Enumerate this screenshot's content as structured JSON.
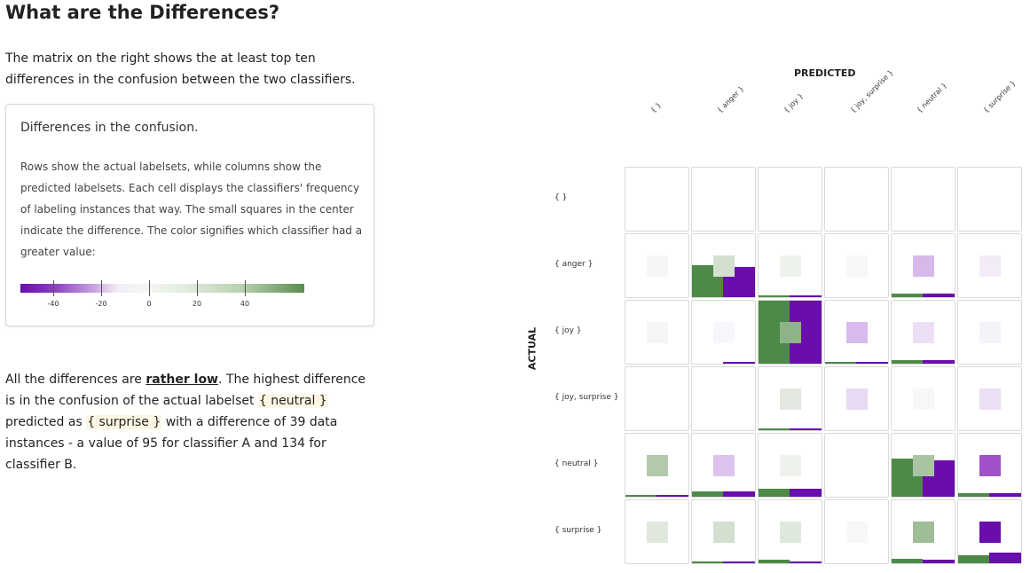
{
  "page": {
    "title": "What are the Differences?",
    "intro": "The matrix on the right shows the at least top ten differences in the confusion between the two classifiers."
  },
  "card": {
    "title": "Differences in the confusion.",
    "description": "Rows show the actual labelsets, while columns show the predicted labelsets. Each cell displays the classifiers' frequency of labeling instances that way. The small squares in the center indicate the difference. The color signifies which classifier had a greater value:",
    "legend_ticks": [
      "-40",
      "-20",
      "0",
      "20",
      "40"
    ],
    "legend_colors": {
      "negative": "#6a0dad",
      "neutral": "#f4f4f4",
      "positive": "#5a8c50"
    }
  },
  "conclusion": {
    "p1": "All the differences are ",
    "emph": "rather low",
    "p2": ". The highest difference is in the confusion of the actual labelset ",
    "actual_label": "{ neutral }",
    "p3": " predicted as ",
    "pred_label": "{ surprise }",
    "p4": " with a difference of 39 data instances - a value of 95 for classifier A and 134 for classifier B."
  },
  "matrix": {
    "predicted_title": "PREDICTED",
    "actual_title": "ACTUAL",
    "columns": [
      "{ }",
      "{ anger }",
      "{ joy }",
      "{ joy, surprise }",
      "{ neutral }",
      "{ surprise }"
    ],
    "rows": [
      "{ }",
      "{ anger }",
      "{ joy }",
      "{ joy, surprise }",
      "{ neutral }",
      "{ surprise }"
    ],
    "colors": {
      "classifier_a": "#4e8a47",
      "classifier_b": "#6a0dad"
    },
    "cells": [
      [
        {
          "sq": "none",
          "a": 0,
          "b": 0
        },
        {
          "sq": "none",
          "a": 0,
          "b": 0
        },
        {
          "sq": "none",
          "a": 0,
          "b": 0
        },
        {
          "sq": "none",
          "a": 0,
          "b": 0
        },
        {
          "sq": "none",
          "a": 0,
          "b": 0
        },
        {
          "sq": "none",
          "a": 0,
          "b": 0
        }
      ],
      [
        {
          "sq": "#f6f6f6",
          "a": 0,
          "b": 0
        },
        {
          "sq": "#d3e0cf",
          "a": 0.5,
          "b": 0.48
        },
        {
          "sq": "#eef2ec",
          "a": 0.03,
          "b": 0.02
        },
        {
          "sq": "#f7f7f7",
          "a": 0,
          "b": 0
        },
        {
          "sq": "#d7b8eb",
          "a": 0.05,
          "b": 0.06
        },
        {
          "sq": "#f3ebf8",
          "a": 0,
          "b": 0
        }
      ],
      [
        {
          "sq": "#f6f6f8",
          "a": 0,
          "b": 0
        },
        {
          "sq": "#f7f7fb",
          "a": 0,
          "b": 0.01
        },
        {
          "sq": "#8fb389",
          "a": 1,
          "b": 1
        },
        {
          "sq": "#d8bbee",
          "a": 0.02,
          "b": 0.03
        },
        {
          "sq": "#ecdff5",
          "a": 0.05,
          "b": 0.06
        },
        {
          "sq": "#f6f2fa",
          "a": 0,
          "b": 0
        }
      ],
      [
        {
          "sq": "none",
          "a": 0,
          "b": 0
        },
        {
          "sq": "none",
          "a": 0,
          "b": 0
        },
        {
          "sq": "#e2e8df",
          "a": 0.01,
          "b": 0.01
        },
        {
          "sq": "#e8d9f4",
          "a": 0,
          "b": 0
        },
        {
          "sq": "#f7f7f7",
          "a": 0,
          "b": 0
        },
        {
          "sq": "#ecdff5",
          "a": 0,
          "b": 0
        }
      ],
      [
        {
          "sq": "#b3c9ad",
          "a": 0.02,
          "b": 0.01
        },
        {
          "sq": "#dbc3ee",
          "a": 0.08,
          "b": 0.09
        },
        {
          "sq": "#eef2ec",
          "a": 0.12,
          "b": 0.12
        },
        {
          "sq": "none",
          "a": 0,
          "b": 0
        },
        {
          "sq": "#a9c4a2",
          "a": 0.6,
          "b": 0.58
        },
        {
          "sq": "#a052c9",
          "a": 0.05,
          "b": 0.06
        }
      ],
      [
        {
          "sq": "#e0e8dd",
          "a": 0,
          "b": 0
        },
        {
          "sq": "#d3e0cf",
          "a": 0.02,
          "b": 0.02
        },
        {
          "sq": "#dfe8dc",
          "a": 0.05,
          "b": 0.02
        },
        {
          "sq": "#f7f7f7",
          "a": 0,
          "b": 0
        },
        {
          "sq": "#9fbd97",
          "a": 0.07,
          "b": 0.06
        },
        {
          "sq": "#6a0dad",
          "a": 0.12,
          "b": 0.17
        }
      ]
    ]
  }
}
